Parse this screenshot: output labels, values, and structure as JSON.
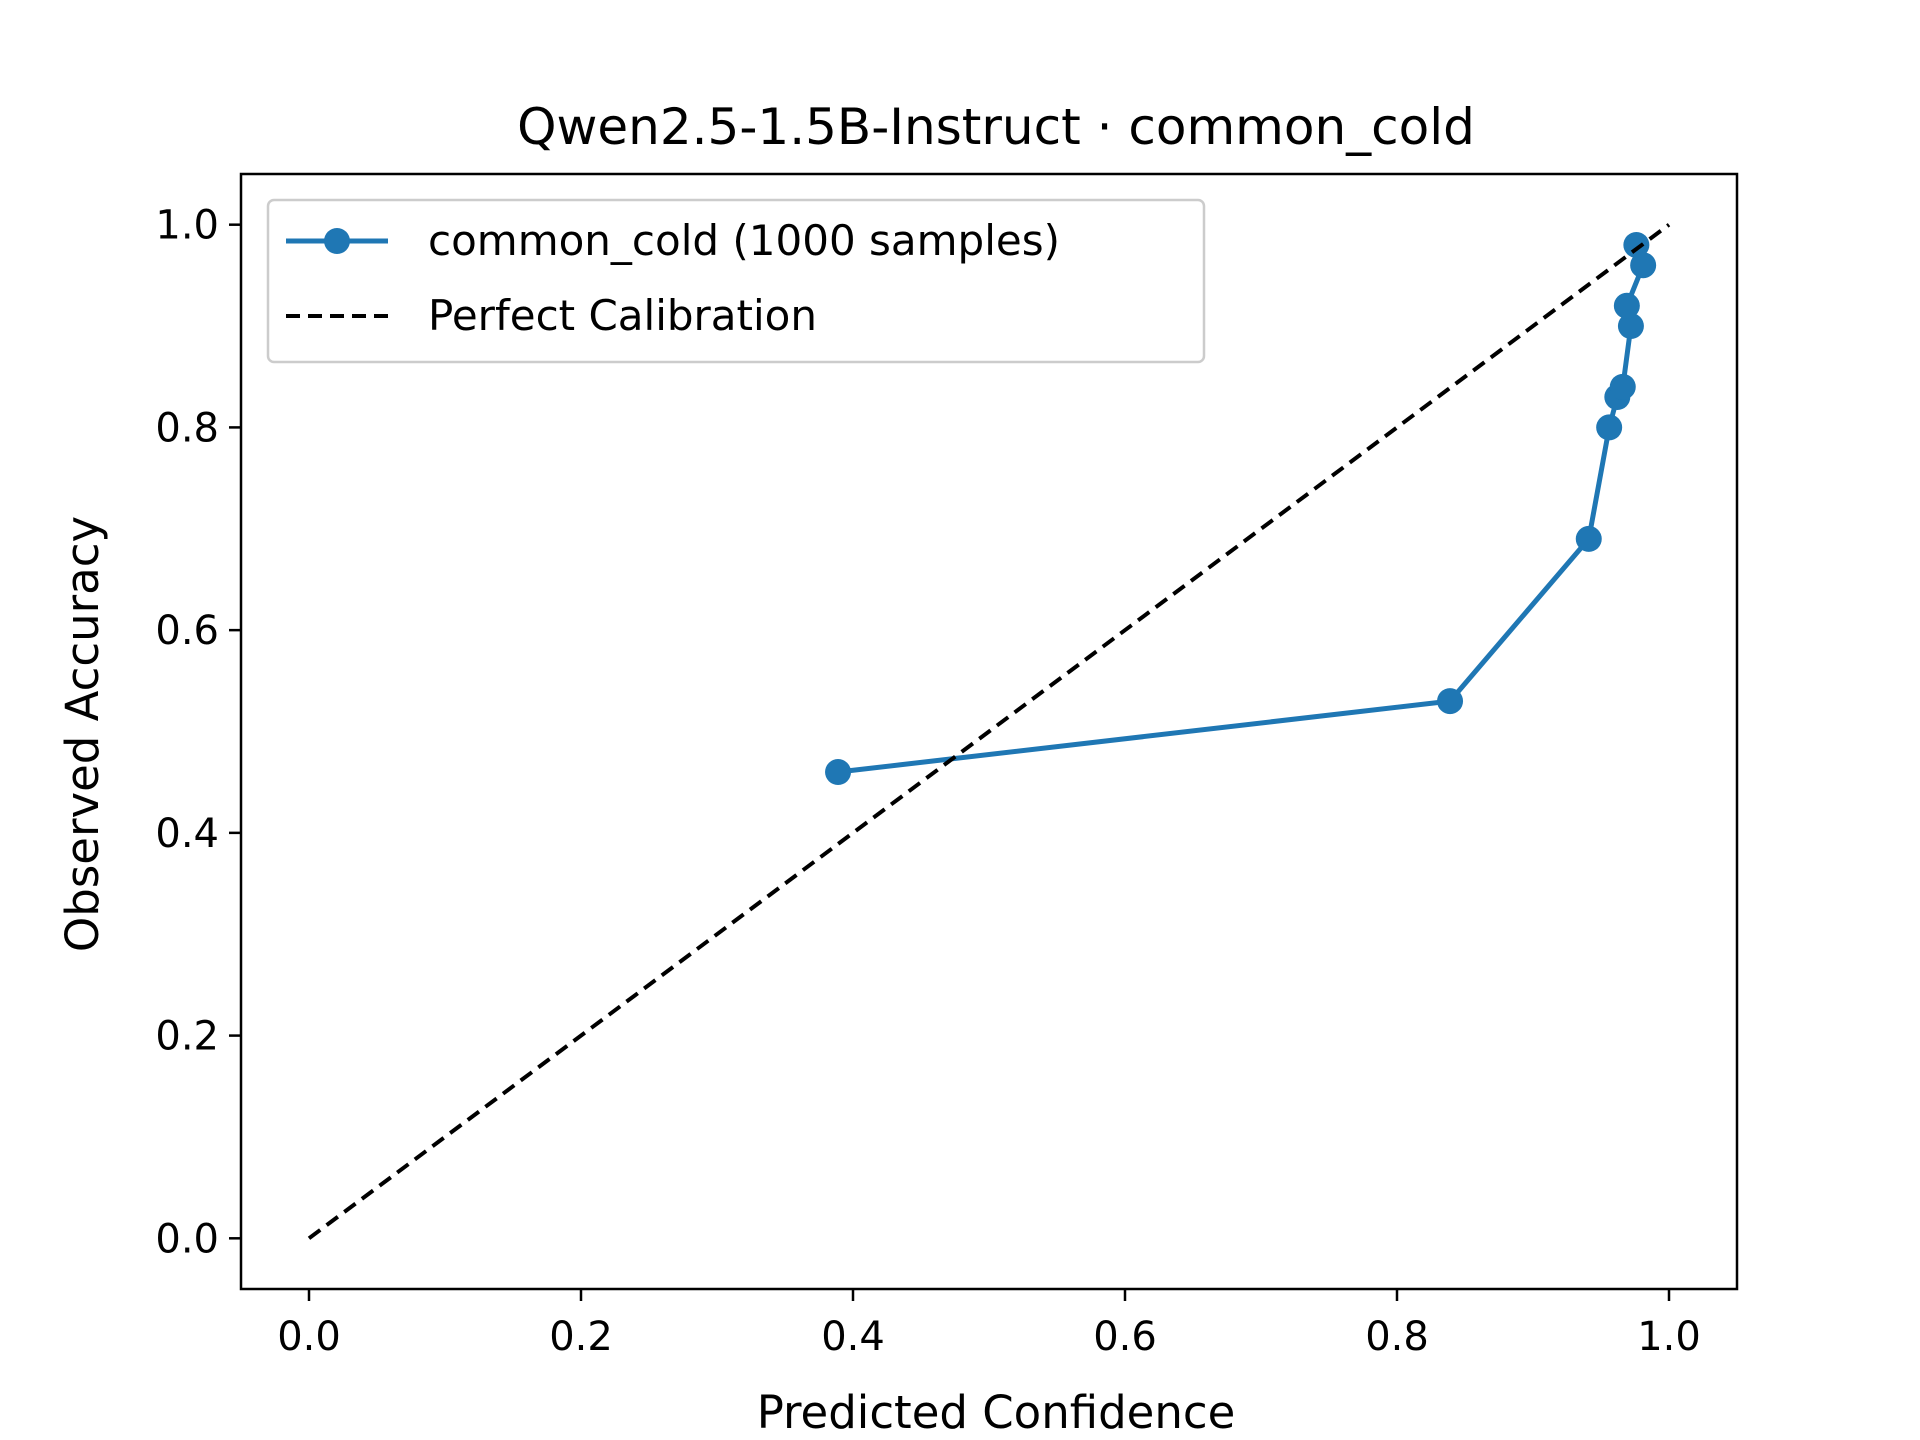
{
  "chart_data": {
    "type": "line",
    "title": "Qwen2.5-1.5B-Instruct · common_cold",
    "xlabel": "Predicted Confidence",
    "ylabel": "Observed Accuracy",
    "xlim": [
      -0.05,
      1.05
    ],
    "ylim": [
      -0.05,
      1.05
    ],
    "xticks": [
      0.0,
      0.2,
      0.4,
      0.6,
      0.8,
      1.0
    ],
    "yticks": [
      0.0,
      0.2,
      0.4,
      0.6,
      0.8,
      1.0
    ],
    "xtick_labels": [
      "0.0",
      "0.2",
      "0.4",
      "0.6",
      "0.8",
      "1.0"
    ],
    "ytick_labels": [
      "0.0",
      "0.2",
      "0.4",
      "0.6",
      "0.8",
      "1.0"
    ],
    "grid": false,
    "legend_position": "upper-left",
    "series": [
      {
        "name": "common_cold (1000 samples)",
        "color": "#1f77b4",
        "style": "solid-with-markers",
        "x": [
          0.389,
          0.839,
          0.941,
          0.956,
          0.962,
          0.966,
          0.972,
          0.969,
          0.981,
          0.976
        ],
        "y": [
          0.46,
          0.53,
          0.69,
          0.8,
          0.83,
          0.84,
          0.9,
          0.92,
          0.96,
          0.98
        ]
      },
      {
        "name": "Perfect Calibration",
        "color": "#000000",
        "style": "dashed",
        "x": [
          0.0,
          1.0
        ],
        "y": [
          0.0,
          1.0
        ]
      }
    ]
  }
}
